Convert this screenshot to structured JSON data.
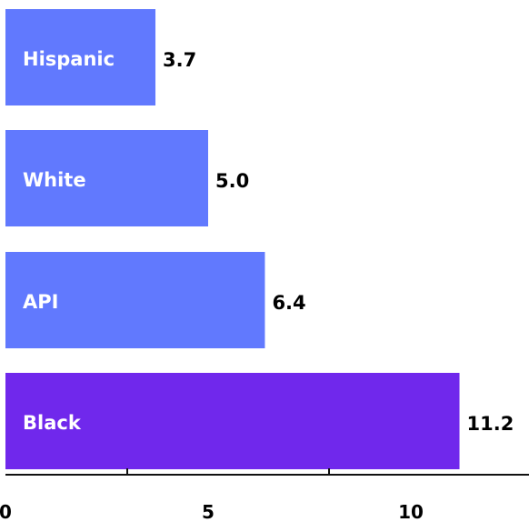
{
  "chart_data": {
    "type": "bar",
    "orientation": "horizontal",
    "categories": [
      "Hispanic",
      "White",
      "API",
      "Black"
    ],
    "values": [
      3.7,
      5.0,
      6.4,
      11.2
    ],
    "value_labels": [
      "3.7",
      "5.0",
      "6.4",
      "11.2"
    ],
    "xlim": [
      0,
      13
    ],
    "xticks": [
      0,
      5,
      10
    ],
    "xtick_labels": [
      "0",
      "5",
      "10"
    ],
    "grid": false,
    "legend": "none",
    "colors": {
      "default_bar": "#6179FE",
      "highlight_bar": "#7028EC",
      "highlight_category": "Black",
      "axis": "#111111"
    }
  }
}
